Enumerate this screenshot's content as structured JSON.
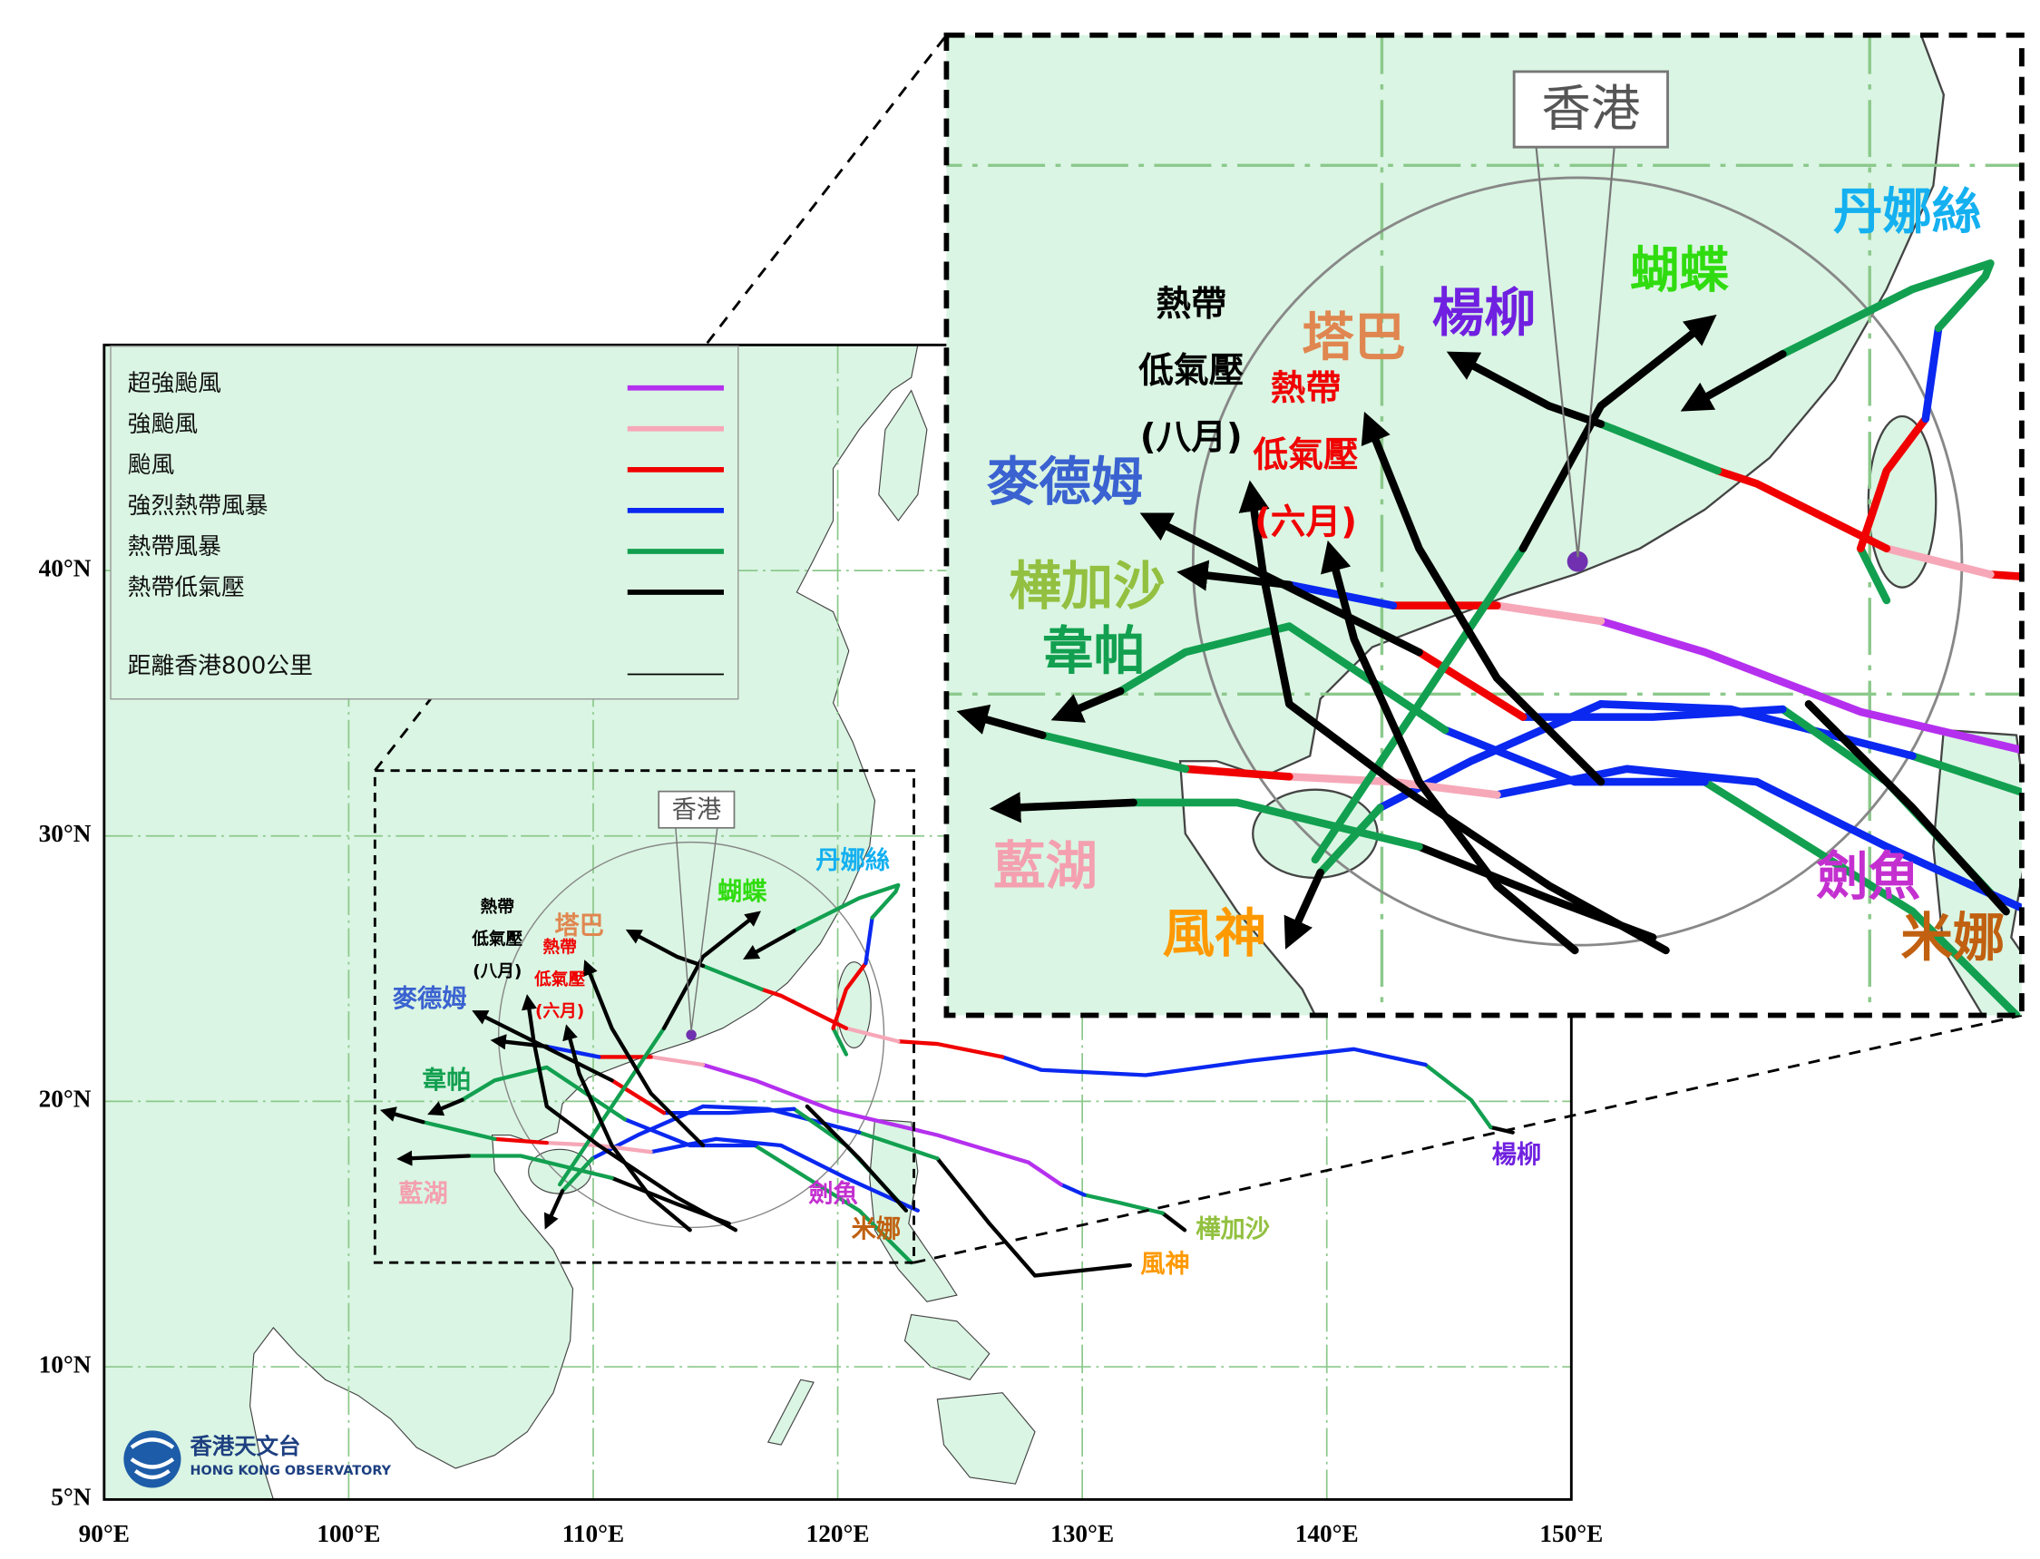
{
  "map": {
    "xlim": [
      90,
      150
    ],
    "ylim": [
      5,
      48.5
    ],
    "lon_ticks": [
      {
        "value": 90,
        "label": "90°E"
      },
      {
        "value": 100,
        "label": "100°E"
      },
      {
        "value": 110,
        "label": "110°E"
      },
      {
        "value": 120,
        "label": "120°E"
      },
      {
        "value": 130,
        "label": "130°E"
      },
      {
        "value": 140,
        "label": "140°E"
      },
      {
        "value": 150,
        "label": "150°E"
      }
    ],
    "lat_ticks": [
      {
        "value": 5,
        "label": "5°N"
      },
      {
        "value": 10,
        "label": "10°N"
      },
      {
        "value": 20,
        "label": "20°N"
      },
      {
        "value": 30,
        "label": "30°N"
      },
      {
        "value": 40,
        "label": "40°N"
      }
    ]
  },
  "legend": {
    "items": [
      {
        "label": "超強颱風",
        "color": "#b530ee"
      },
      {
        "label": "強颱風",
        "color": "#f6a8b8"
      },
      {
        "label": "颱風",
        "color": "#f00000"
      },
      {
        "label": "強烈熱帶風暴",
        "color": "#0a28f0"
      },
      {
        "label": "熱帶風暴",
        "color": "#12a050"
      },
      {
        "label": "熱帶低氣壓",
        "color": "#000000"
      }
    ],
    "distance": {
      "label": "距離香港800公里",
      "color": "#000000"
    }
  },
  "hong_kong": "香港",
  "storms": [
    {
      "name": [
        "丹娜絲"
      ],
      "color": "#14b0f0"
    },
    {
      "name": [
        "蝴蝶"
      ],
      "color": "#30dc10"
    },
    {
      "name": [
        "楊柳"
      ],
      "color": "#7020e0"
    },
    {
      "name": [
        "塔巴"
      ],
      "color": "#e08650"
    },
    {
      "name": [
        "熱帶",
        "低氣壓",
        "(六月)"
      ],
      "color": "#f00000"
    },
    {
      "name": [
        "熱帶",
        "低氣壓",
        "(八月)"
      ],
      "color": "#000000"
    },
    {
      "name": [
        "麥德姆"
      ],
      "color": "#3a62d0"
    },
    {
      "name": [
        "樺加沙"
      ],
      "color": "#92c040"
    },
    {
      "name": [
        "韋帕"
      ],
      "color": "#12a050"
    },
    {
      "name": [
        "藍湖"
      ],
      "color": "#f4a0b0"
    },
    {
      "name": [
        "劍魚"
      ],
      "color": "#c430d0"
    },
    {
      "name": [
        "米娜"
      ],
      "color": "#c06010"
    },
    {
      "name": [
        "風神"
      ],
      "color": "#ff9900"
    }
  ],
  "logo": {
    "chinese": "香港天文台",
    "english": "HONG KONG OBSERVATORY"
  }
}
